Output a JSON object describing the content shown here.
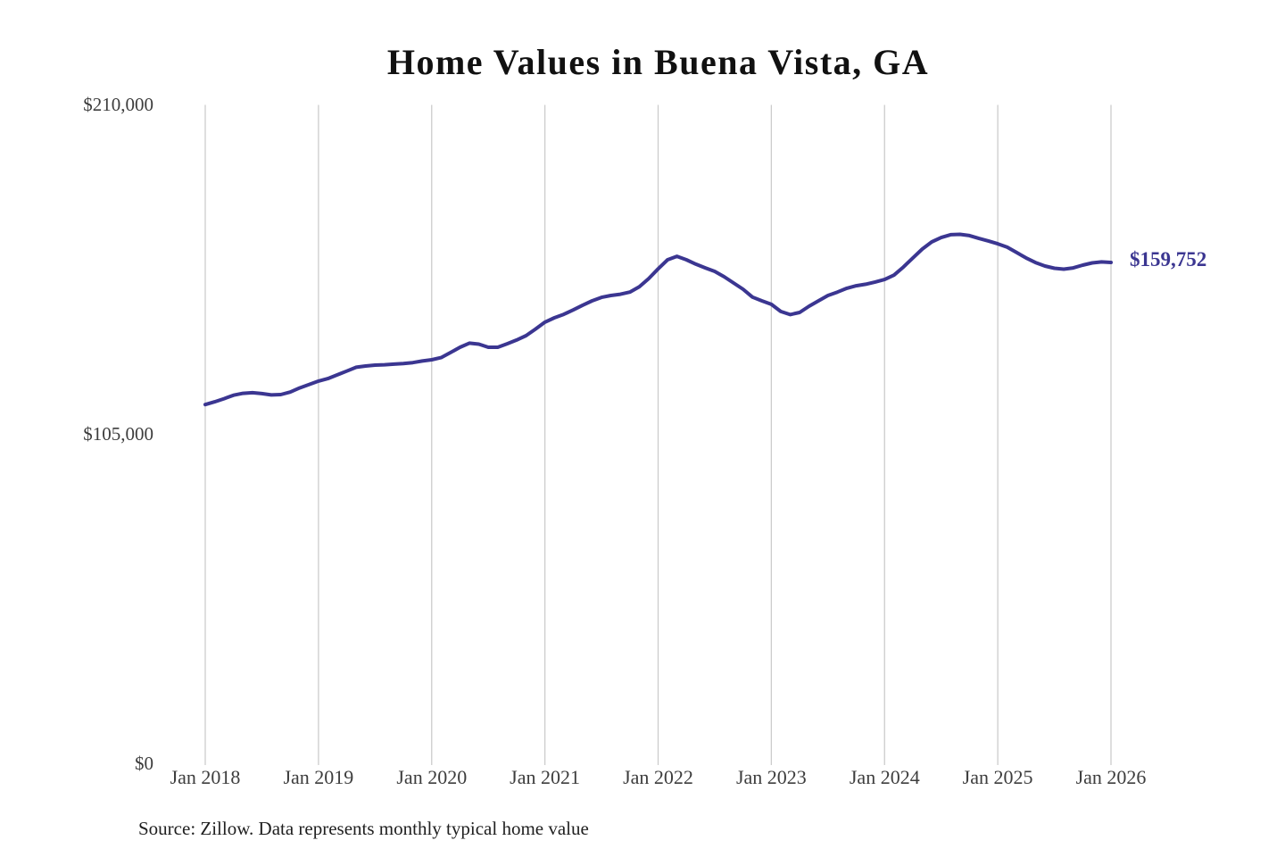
{
  "title": "Home Values in Buena Vista, GA",
  "source_note": "Source: Zillow. Data represents monthly typical home value",
  "end_label": "$159,752",
  "colors": {
    "line": "#3b3691",
    "end_label": "#3b3691",
    "grid": "#cccccc",
    "axis_text": "#3d3d3d",
    "title_text": "#111111"
  },
  "y_axis": {
    "ticks": [
      {
        "label": "$210,000",
        "value": 210000
      },
      {
        "label": "$105,000",
        "value": 105000
      },
      {
        "label": "$0",
        "value": 0
      }
    ]
  },
  "x_axis": {
    "ticks": [
      "Jan 2018",
      "Jan 2019",
      "Jan 2020",
      "Jan 2021",
      "Jan 2022",
      "Jan 2023",
      "Jan 2024",
      "Jan 2025",
      "Jan 2026"
    ]
  },
  "chart_data": {
    "type": "line",
    "title": "Home Values in Buena Vista, GA",
    "xlabel": "",
    "ylabel": "",
    "ylim": [
      0,
      210000
    ],
    "grid": "vertical-only",
    "legend": "none",
    "interval": "monthly",
    "x_start": "Jan 2018",
    "x_end": "Jan 2026",
    "x_tick_labels": [
      "Jan 2018",
      "Jan 2019",
      "Jan 2020",
      "Jan 2021",
      "Jan 2022",
      "Jan 2023",
      "Jan 2024",
      "Jan 2025",
      "Jan 2026"
    ],
    "final_value_label": "$159,752",
    "values": [
      114400,
      115300,
      116300,
      117400,
      118000,
      118200,
      117900,
      117500,
      117600,
      118400,
      119700,
      120800,
      121900,
      122700,
      123900,
      125100,
      126300,
      126700,
      127000,
      127100,
      127300,
      127500,
      127800,
      128300,
      128700,
      129400,
      131000,
      132700,
      134000,
      133700,
      132700,
      132700,
      133800,
      135000,
      136400,
      138500,
      140700,
      142100,
      143200,
      144600,
      146100,
      147500,
      148600,
      149200,
      149600,
      150300,
      152000,
      154600,
      157700,
      160600,
      161700,
      160600,
      159200,
      158000,
      156900,
      155200,
      153200,
      151200,
      148700,
      147500,
      146400,
      144100,
      143100,
      143800,
      145800,
      147500,
      149200,
      150300,
      151500,
      152300,
      152800,
      153500,
      154300,
      155700,
      158300,
      161200,
      164000,
      166300,
      167700,
      168600,
      168700,
      168300,
      167400,
      166600,
      165700,
      164600,
      162900,
      161200,
      159700,
      158600,
      157900,
      157600,
      158000,
      158900,
      159600,
      159900,
      159752
    ]
  }
}
